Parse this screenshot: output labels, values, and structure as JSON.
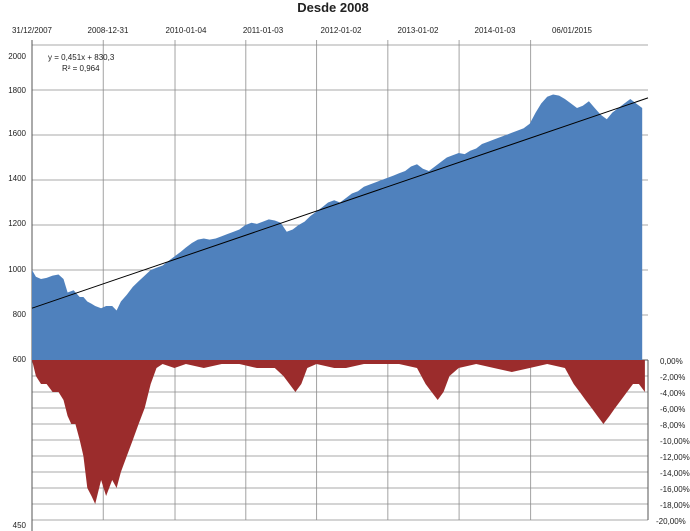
{
  "chart_data": {
    "title": "Desde 2008",
    "type": "area",
    "x_tick_labels": [
      "31/12/2007",
      "2008-12-31",
      "2010-01-04",
      "2011-01-03",
      "2012-01-02",
      "2013-01-02",
      "2014-01-03",
      "06/01/2015"
    ],
    "y_left_tick_labels": [
      "2000",
      "1800",
      "1600",
      "1400",
      "1200",
      "1000",
      "800",
      "600",
      "450"
    ],
    "y_left_range": [
      450,
      2000
    ],
    "y_right_tick_labels": [
      "0,00%",
      "-2,00%",
      "-4,00%",
      "-6,00%",
      "-8,00%",
      "-10,00%",
      "-12,00%",
      "-14,00%",
      "-16,00%",
      "-18,00%",
      "-20,00%"
    ],
    "y_right_range": [
      -20,
      0
    ],
    "grid": true,
    "trendline": {
      "equation": "y = 0,451x + 830,3",
      "r_squared": "R² = 0,964"
    },
    "series": [
      {
        "color": "#4f81bd",
        "points": [
          [
            "2007-12-31",
            1000
          ],
          [
            "2008-01-20",
            970
          ],
          [
            "2008-02-15",
            960
          ],
          [
            "2008-03-15",
            965
          ],
          [
            "2008-04-15",
            975
          ],
          [
            "2008-05-15",
            980
          ],
          [
            "2008-06-10",
            960
          ],
          [
            "2008-07-01",
            900
          ],
          [
            "2008-08-01",
            910
          ],
          [
            "2008-09-01",
            880
          ],
          [
            "2008-09-20",
            880
          ],
          [
            "2008-10-10",
            860
          ],
          [
            "2008-11-01",
            850
          ],
          [
            "2008-11-20",
            840
          ],
          [
            "2008-12-20",
            830
          ],
          [
            "2009-01-15",
            840
          ],
          [
            "2009-02-15",
            840
          ],
          [
            "2009-03-10",
            820
          ],
          [
            "2009-04-01",
            860
          ],
          [
            "2009-05-01",
            890
          ],
          [
            "2009-06-01",
            925
          ],
          [
            "2009-07-01",
            950
          ],
          [
            "2009-08-01",
            975
          ],
          [
            "2009-09-01",
            1000
          ],
          [
            "2009-10-01",
            1010
          ],
          [
            "2009-11-01",
            1020
          ],
          [
            "2009-12-01",
            1040
          ],
          [
            "2010-01-01",
            1060
          ],
          [
            "2010-02-01",
            1080
          ],
          [
            "2010-03-01",
            1100
          ],
          [
            "2010-04-01",
            1120
          ],
          [
            "2010-05-01",
            1135
          ],
          [
            "2010-06-01",
            1140
          ],
          [
            "2010-07-01",
            1135
          ],
          [
            "2010-08-01",
            1140
          ],
          [
            "2010-09-01",
            1150
          ],
          [
            "2010-10-01",
            1160
          ],
          [
            "2010-11-01",
            1170
          ],
          [
            "2010-12-01",
            1180
          ],
          [
            "2011-01-01",
            1200
          ],
          [
            "2011-02-01",
            1210
          ],
          [
            "2011-03-01",
            1205
          ],
          [
            "2011-04-01",
            1215
          ],
          [
            "2011-05-01",
            1225
          ],
          [
            "2011-06-01",
            1220
          ],
          [
            "2011-07-01",
            1210
          ],
          [
            "2011-08-01",
            1170
          ],
          [
            "2011-09-01",
            1180
          ],
          [
            "2011-10-01",
            1200
          ],
          [
            "2011-11-01",
            1215
          ],
          [
            "2011-12-01",
            1240
          ],
          [
            "2012-01-01",
            1260
          ],
          [
            "2012-02-01",
            1280
          ],
          [
            "2012-03-01",
            1300
          ],
          [
            "2012-04-01",
            1310
          ],
          [
            "2012-05-01",
            1300
          ],
          [
            "2012-06-01",
            1320
          ],
          [
            "2012-07-01",
            1340
          ],
          [
            "2012-08-01",
            1350
          ],
          [
            "2012-09-01",
            1370
          ],
          [
            "2012-10-01",
            1380
          ],
          [
            "2012-11-01",
            1390
          ],
          [
            "2012-12-01",
            1400
          ],
          [
            "2013-01-01",
            1410
          ],
          [
            "2013-02-01",
            1420
          ],
          [
            "2013-03-01",
            1430
          ],
          [
            "2013-04-01",
            1440
          ],
          [
            "2013-05-01",
            1460
          ],
          [
            "2013-06-01",
            1470
          ],
          [
            "2013-07-01",
            1450
          ],
          [
            "2013-08-01",
            1440
          ],
          [
            "2013-09-01",
            1460
          ],
          [
            "2013-10-01",
            1480
          ],
          [
            "2013-11-01",
            1500
          ],
          [
            "2013-12-01",
            1510
          ],
          [
            "2014-01-01",
            1520
          ],
          [
            "2014-02-01",
            1515
          ],
          [
            "2014-03-01",
            1530
          ],
          [
            "2014-04-01",
            1540
          ],
          [
            "2014-05-01",
            1560
          ],
          [
            "2014-06-01",
            1570
          ],
          [
            "2014-07-01",
            1580
          ],
          [
            "2014-08-01",
            1590
          ],
          [
            "2014-09-01",
            1600
          ],
          [
            "2014-10-01",
            1610
          ],
          [
            "2014-11-01",
            1620
          ],
          [
            "2014-12-01",
            1630
          ],
          [
            "2015-01-01",
            1650
          ],
          [
            "2015-02-01",
            1700
          ],
          [
            "2015-03-01",
            1740
          ],
          [
            "2015-04-01",
            1770
          ],
          [
            "2015-05-01",
            1780
          ],
          [
            "2015-06-01",
            1775
          ],
          [
            "2015-07-01",
            1760
          ],
          [
            "2015-08-01",
            1740
          ],
          [
            "2015-09-01",
            1720
          ],
          [
            "2015-10-01",
            1730
          ],
          [
            "2015-11-01",
            1750
          ],
          [
            "2015-12-01",
            1720
          ],
          [
            "2016-01-01",
            1690
          ],
          [
            "2016-02-01",
            1670
          ],
          [
            "2016-03-01",
            1700
          ],
          [
            "2016-04-01",
            1720
          ],
          [
            "2016-05-01",
            1740
          ],
          [
            "2016-06-01",
            1760
          ],
          [
            "2016-07-01",
            1740
          ],
          [
            "2016-08-01",
            1720
          ]
        ]
      },
      {
        "color": "#9b2c2c",
        "points": [
          [
            "2007-12-31",
            0
          ],
          [
            "2008-01-20",
            -2
          ],
          [
            "2008-02-15",
            -3
          ],
          [
            "2008-03-15",
            -3
          ],
          [
            "2008-04-15",
            -4
          ],
          [
            "2008-05-15",
            -4
          ],
          [
            "2008-06-10",
            -5
          ],
          [
            "2008-07-01",
            -7
          ],
          [
            "2008-07-20",
            -8
          ],
          [
            "2008-08-10",
            -8
          ],
          [
            "2008-09-01",
            -10
          ],
          [
            "2008-09-20",
            -12
          ],
          [
            "2008-10-10",
            -16
          ],
          [
            "2008-11-01",
            -17
          ],
          [
            "2008-11-20",
            -18
          ],
          [
            "2008-12-20",
            -15
          ],
          [
            "2009-01-15",
            -17
          ],
          [
            "2009-02-15",
            -15
          ],
          [
            "2009-03-10",
            -16
          ],
          [
            "2009-04-01",
            -14
          ],
          [
            "2009-05-01",
            -12
          ],
          [
            "2009-06-01",
            -10
          ],
          [
            "2009-07-01",
            -8
          ],
          [
            "2009-08-01",
            -6
          ],
          [
            "2009-09-01",
            -3
          ],
          [
            "2009-10-01",
            -1
          ],
          [
            "2009-11-01",
            -0.5
          ],
          [
            "2010-01-01",
            -1
          ],
          [
            "2010-03-01",
            -0.5
          ],
          [
            "2010-06-01",
            -1
          ],
          [
            "2010-09-01",
            -0.5
          ],
          [
            "2010-12-01",
            -0.5
          ],
          [
            "2011-03-01",
            -1
          ],
          [
            "2011-06-01",
            -1
          ],
          [
            "2011-07-15",
            -2
          ],
          [
            "2011-08-15",
            -3
          ],
          [
            "2011-09-15",
            -4
          ],
          [
            "2011-10-15",
            -3
          ],
          [
            "2011-11-15",
            -1
          ],
          [
            "2012-01-01",
            -0.5
          ],
          [
            "2012-04-01",
            -1
          ],
          [
            "2012-06-01",
            -1
          ],
          [
            "2012-09-01",
            -0.5
          ],
          [
            "2012-12-01",
            -0.5
          ],
          [
            "2013-03-01",
            -0.5
          ],
          [
            "2013-06-01",
            -1
          ],
          [
            "2013-07-15",
            -3
          ],
          [
            "2013-08-15",
            -4
          ],
          [
            "2013-09-15",
            -5
          ],
          [
            "2013-10-15",
            -4
          ],
          [
            "2013-11-15",
            -2
          ],
          [
            "2014-01-01",
            -1
          ],
          [
            "2014-04-01",
            -0.5
          ],
          [
            "2014-07-01",
            -1
          ],
          [
            "2014-10-01",
            -1.5
          ],
          [
            "2015-01-01",
            -1
          ],
          [
            "2015-04-01",
            -0.5
          ],
          [
            "2015-07-01",
            -1
          ],
          [
            "2015-08-15",
            -3
          ],
          [
            "2015-09-15",
            -4
          ],
          [
            "2015-10-15",
            -5
          ],
          [
            "2015-11-15",
            -6
          ],
          [
            "2015-12-15",
            -7
          ],
          [
            "2016-01-15",
            -8
          ],
          [
            "2016-02-15",
            -7
          ],
          [
            "2016-03-15",
            -6
          ],
          [
            "2016-04-15",
            -5
          ],
          [
            "2016-05-15",
            -4
          ],
          [
            "2016-06-15",
            -3
          ],
          [
            "2016-07-15",
            -3
          ],
          [
            "2016-08-15",
            -4
          ]
        ]
      }
    ]
  }
}
